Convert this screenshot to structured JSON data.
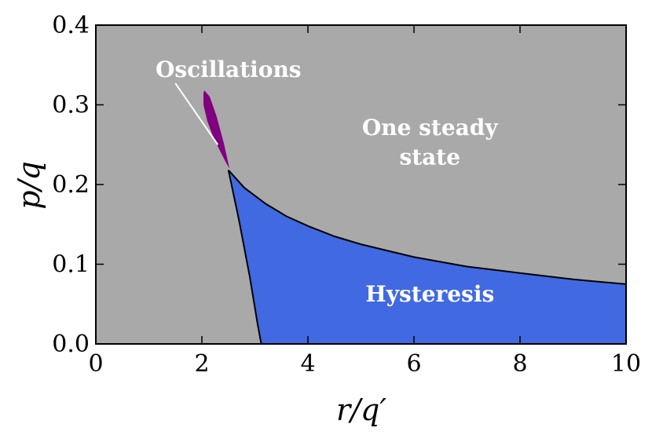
{
  "chart_data": {
    "type": "area",
    "xlabel": "r/q′",
    "ylabel": "p/q",
    "xlim": [
      0,
      10
    ],
    "ylim": [
      0,
      0.4
    ],
    "x_ticks": [
      "0",
      "2",
      "4",
      "6",
      "8",
      "10"
    ],
    "y_ticks": [
      "0.0",
      "0.1",
      "0.2",
      "0.3",
      "0.4"
    ],
    "x_tick_values": [
      0,
      2,
      4,
      6,
      8,
      10
    ],
    "y_tick_values": [
      0,
      0.1,
      0.2,
      0.3,
      0.4
    ],
    "grid": false,
    "colors": {
      "background_region": "#a9a9a9",
      "hysteresis": "#4169e1",
      "oscillations": "#800080",
      "boundary": "#000000",
      "label_text": "#ffffff"
    },
    "regions": {
      "one_steady_state": {
        "label_line1": "One steady",
        "label_line2": "state",
        "label_x": 6.3,
        "label_y1": 0.262,
        "label_y2": 0.225
      },
      "hysteresis": {
        "label": "Hysteresis",
        "label_x": 6.3,
        "label_y": 0.053
      },
      "oscillations": {
        "label": "Oscillations",
        "label_x": 2.5,
        "label_y": 0.335,
        "pointer_to": [
          2.3,
          0.25
        ]
      }
    },
    "upper_boundary": {
      "x": [
        2.5,
        2.8,
        3.2,
        3.6,
        4.0,
        4.5,
        5.0,
        6.0,
        7.0,
        8.0,
        9.0,
        10.0
      ],
      "y": [
        0.218,
        0.196,
        0.176,
        0.16,
        0.148,
        0.135,
        0.125,
        0.109,
        0.097,
        0.089,
        0.081,
        0.075
      ]
    },
    "lower_boundary": {
      "x": [
        2.5,
        2.7,
        2.9,
        3.05,
        3.12
      ],
      "y": [
        0.218,
        0.155,
        0.085,
        0.025,
        0.0
      ]
    },
    "oscillation_region": {
      "x": [
        2.05,
        2.15,
        2.28,
        2.42,
        2.52,
        2.45,
        2.32,
        2.2,
        2.1,
        2.03,
        2.03
      ],
      "y": [
        0.318,
        0.31,
        0.285,
        0.25,
        0.22,
        0.228,
        0.245,
        0.262,
        0.28,
        0.3,
        0.315
      ]
    }
  }
}
